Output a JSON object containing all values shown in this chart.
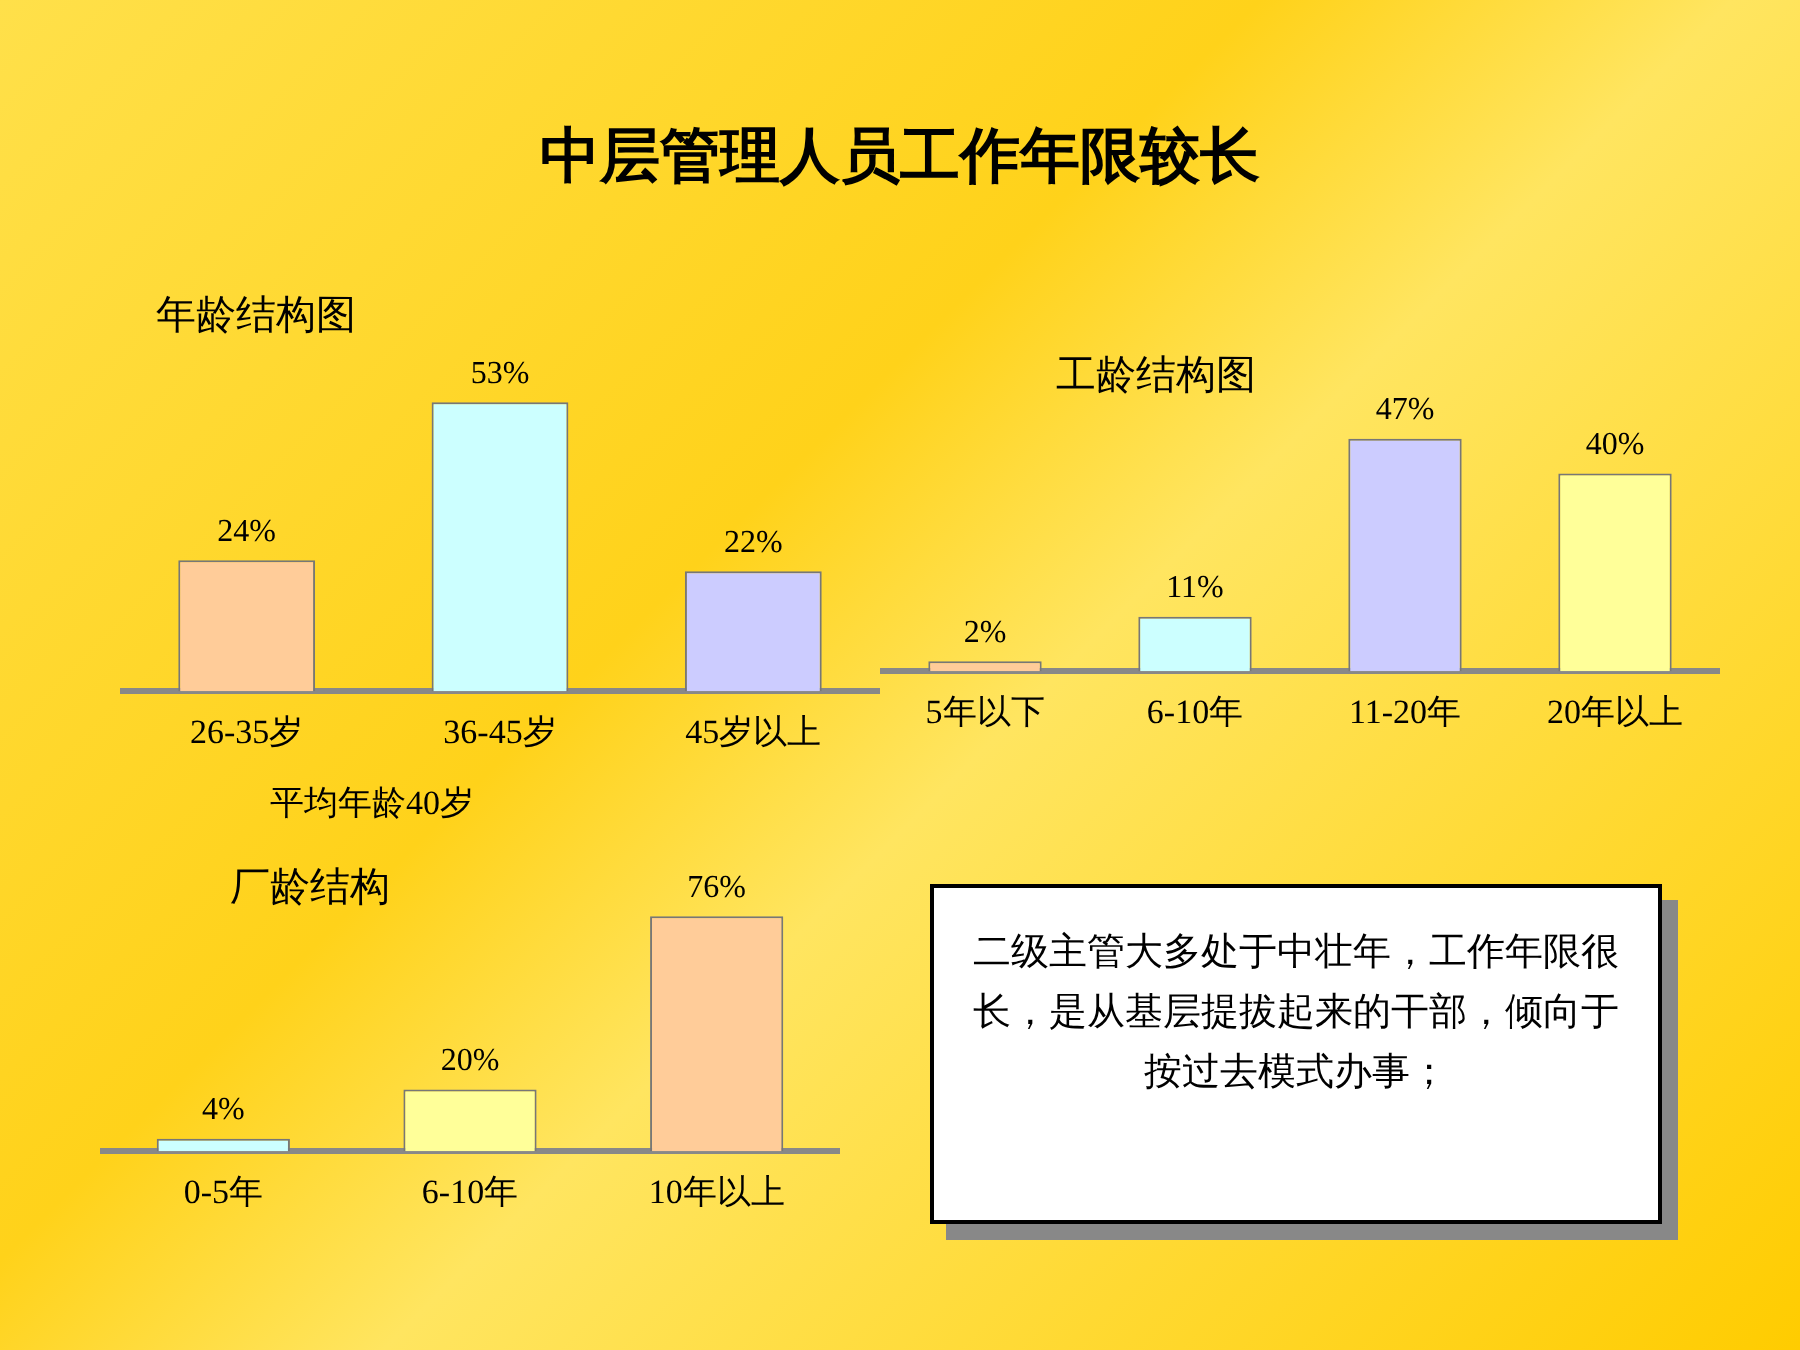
{
  "chart_data": [
    {
      "type": "bar",
      "title": "中层管理人员工作年限较长",
      "subtitle": "年龄结构图",
      "categories": [
        "26-35岁",
        "36-45岁",
        "45岁以上"
      ],
      "values": [
        24,
        53,
        22
      ],
      "colors": [
        "#ffcc99",
        "#ccffff",
        "#ccccff"
      ],
      "value_labels": [
        "24%",
        "53%",
        "22%"
      ],
      "annotations": [
        "平均年龄40岁"
      ]
    },
    {
      "type": "bar",
      "subtitle": "工龄结构图",
      "categories": [
        "5年以下",
        "6-10年",
        "11-20年",
        "20年以上"
      ],
      "values": [
        2,
        11,
        47,
        40
      ],
      "colors": [
        "#ffcc99",
        "#ccffff",
        "#ccccff",
        "#ffff99"
      ],
      "value_labels": [
        "2%",
        "11%",
        "47%",
        "40%"
      ]
    },
    {
      "type": "bar",
      "subtitle": "厂龄结构",
      "categories": [
        "0-5年",
        "6-10年",
        "10年以上"
      ],
      "values": [
        4,
        20,
        76
      ],
      "colors": [
        "#ccffff",
        "#ffff99",
        "#ffcc99"
      ],
      "value_labels": [
        "4%",
        "20%",
        "76%"
      ]
    },
    {
      "type": "other",
      "annotations": [
        "二级主管大多处于中壮年，工作年限很长，是从基层提拔起来的干部，倾向于按过去模式办事；"
      ]
    }
  ]
}
